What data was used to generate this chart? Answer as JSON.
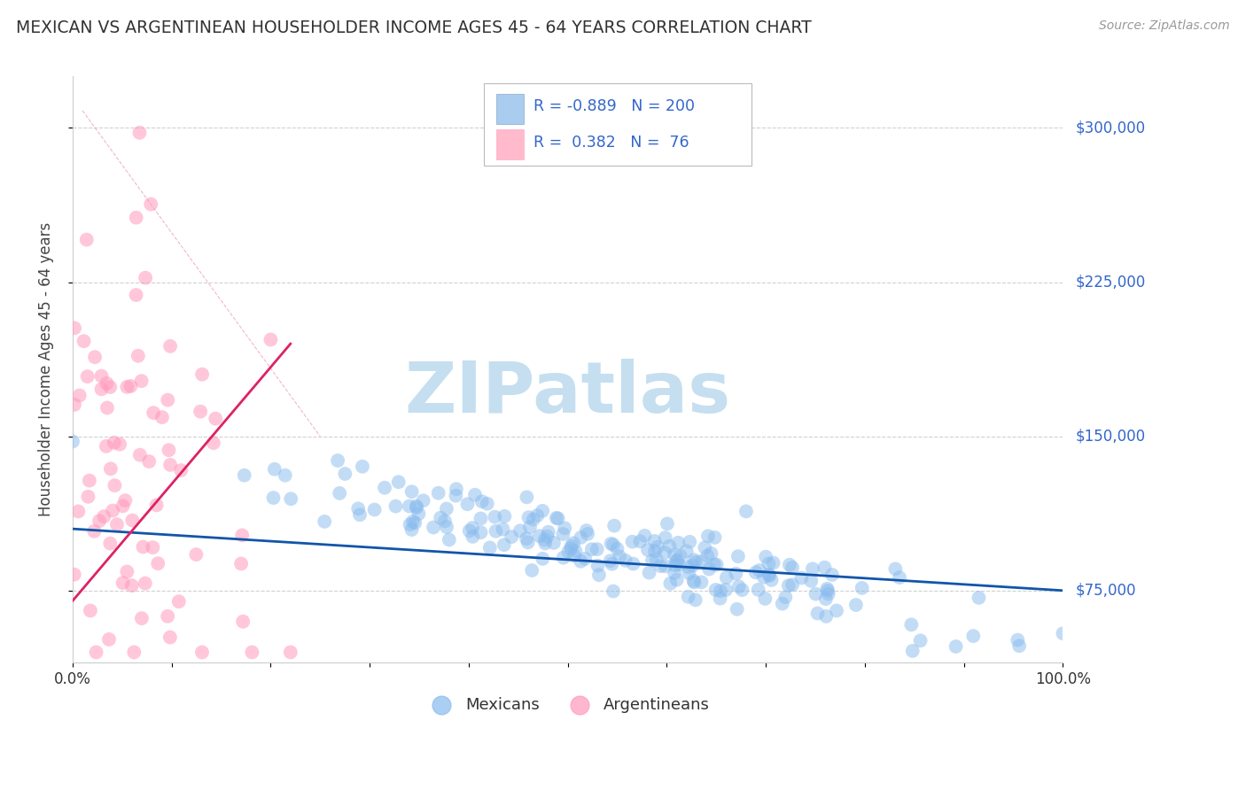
{
  "title": "MEXICAN VS ARGENTINEAN HOUSEHOLDER INCOME AGES 45 - 64 YEARS CORRELATION CHART",
  "source": "Source: ZipAtlas.com",
  "ylabel": "Householder Income Ages 45 - 64 years",
  "ytick_labels": [
    "$75,000",
    "$150,000",
    "$225,000",
    "$300,000"
  ],
  "ytick_values": [
    75000,
    150000,
    225000,
    300000
  ],
  "xlim": [
    0,
    1
  ],
  "ylim": [
    40000,
    320000
  ],
  "title_color": "#333333",
  "source_color": "#999999",
  "blue_color": "#88bbee",
  "pink_color": "#ff99bb",
  "trend_blue_color": "#1155aa",
  "trend_pink_color": "#dd2266",
  "diag_color": "#ee8899",
  "ytick_color": "#3366cc",
  "watermark_zip_color": "#c5dff0",
  "watermark_atlas_color": "#c5dff0",
  "legend_color": "#3366cc",
  "legend_R_color": "#111111",
  "grid_color": "#cccccc",
  "background_color": "#ffffff",
  "mexicans_label": "Mexicans",
  "argentineans_label": "Argentineans",
  "legend_R_blue": "-0.889",
  "legend_N_blue": "200",
  "legend_R_pink": "0.382",
  "legend_N_pink": "76",
  "seed": 12345,
  "N_blue": 200,
  "N_pink": 76
}
